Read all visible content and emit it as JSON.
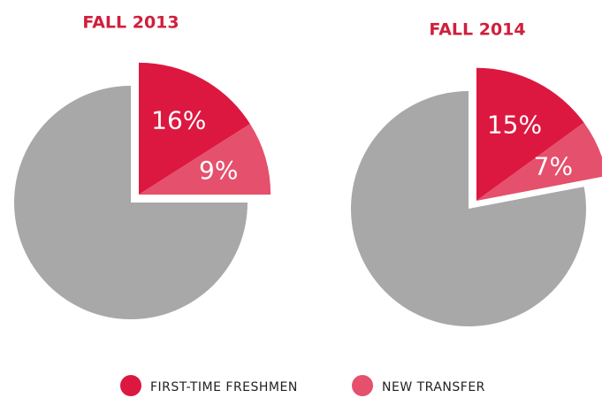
{
  "chart_data": [
    {
      "type": "pie",
      "title": "FALL 2013",
      "categories": [
        "FIRST-TIME FRESHMEN",
        "NEW TRANSFER",
        null
      ],
      "values": [
        16,
        9,
        75
      ],
      "value_labels": [
        "16%",
        "9%",
        null
      ],
      "colors": [
        "#dc1840",
        "#e5506c",
        "#a8a8a8"
      ]
    },
    {
      "type": "pie",
      "title": "FALL 2014",
      "categories": [
        "FIRST-TIME FRESHMEN",
        "NEW TRANSFER",
        null
      ],
      "values": [
        15,
        7,
        78
      ],
      "value_labels": [
        "15%",
        "7%",
        null
      ],
      "colors": [
        "#dc1840",
        "#e5506c",
        "#a8a8a8"
      ]
    }
  ]
}
